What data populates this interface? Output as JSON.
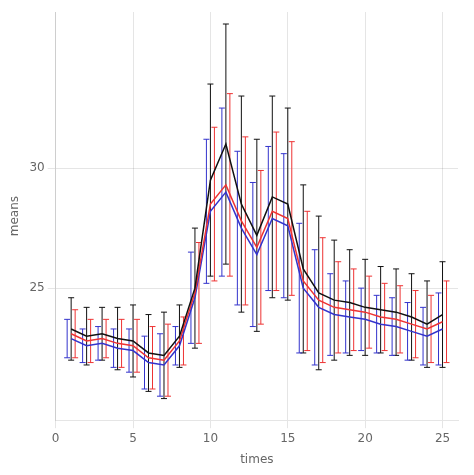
{
  "chart_data": {
    "type": "line",
    "xlabel": "times",
    "ylabel": "means",
    "x": [
      1,
      2,
      3,
      4,
      5,
      6,
      7,
      8,
      9,
      10,
      11,
      12,
      13,
      14,
      15,
      16,
      17,
      18,
      19,
      20,
      21,
      22,
      23,
      24,
      25
    ],
    "series": [
      {
        "color": "#111111",
        "values": [
          23.3,
          23.0,
          23.1,
          22.9,
          22.8,
          22.3,
          22.2,
          23.0,
          25.0,
          29.5,
          31.0,
          28.5,
          27.2,
          28.8,
          28.5,
          25.8,
          24.8,
          24.5,
          24.4,
          24.2,
          24.1,
          24.0,
          23.8,
          23.5,
          23.9
        ],
        "errors": [
          1.3,
          1.2,
          1.1,
          1.3,
          1.5,
          1.6,
          1.8,
          1.3,
          2.5,
          4.0,
          5.0,
          4.5,
          4.0,
          4.2,
          4.0,
          3.5,
          3.2,
          2.5,
          2.2,
          2.0,
          1.8,
          1.8,
          1.8,
          1.8,
          2.2
        ]
      },
      {
        "color": "#EE3333",
        "values": [
          23.1,
          22.8,
          22.9,
          22.7,
          22.6,
          22.1,
          22.0,
          22.8,
          24.8,
          28.5,
          29.3,
          27.8,
          26.7,
          28.2,
          27.9,
          25.3,
          24.5,
          24.2,
          24.1,
          24.0,
          23.8,
          23.7,
          23.5,
          23.3,
          23.6
        ],
        "errors": [
          1.0,
          0.9,
          0.8,
          1.0,
          1.1,
          1.3,
          1.5,
          1.0,
          2.1,
          3.2,
          3.8,
          3.5,
          3.2,
          3.3,
          3.2,
          2.9,
          2.6,
          1.9,
          1.7,
          1.5,
          1.4,
          1.4,
          1.4,
          1.4,
          1.7
        ]
      },
      {
        "color": "#3333CC",
        "values": [
          22.9,
          22.6,
          22.7,
          22.5,
          22.4,
          21.9,
          21.8,
          22.6,
          24.6,
          28.2,
          29.0,
          27.5,
          26.4,
          27.9,
          27.6,
          25.0,
          24.2,
          23.9,
          23.8,
          23.7,
          23.5,
          23.4,
          23.2,
          23.0,
          23.3
        ],
        "errors": [
          0.8,
          0.7,
          0.7,
          0.8,
          0.9,
          1.1,
          1.3,
          0.8,
          1.9,
          3.0,
          3.5,
          3.2,
          3.0,
          3.0,
          3.0,
          2.7,
          2.4,
          1.7,
          1.5,
          1.3,
          1.2,
          1.2,
          1.2,
          1.2,
          1.5
        ]
      }
    ],
    "xlim": [
      0,
      26
    ],
    "ylim": [
      19.5,
      36.5
    ],
    "xticks": [
      0,
      5,
      10,
      15,
      20,
      25
    ],
    "yticks": [
      25,
      30
    ],
    "grid": true
  }
}
